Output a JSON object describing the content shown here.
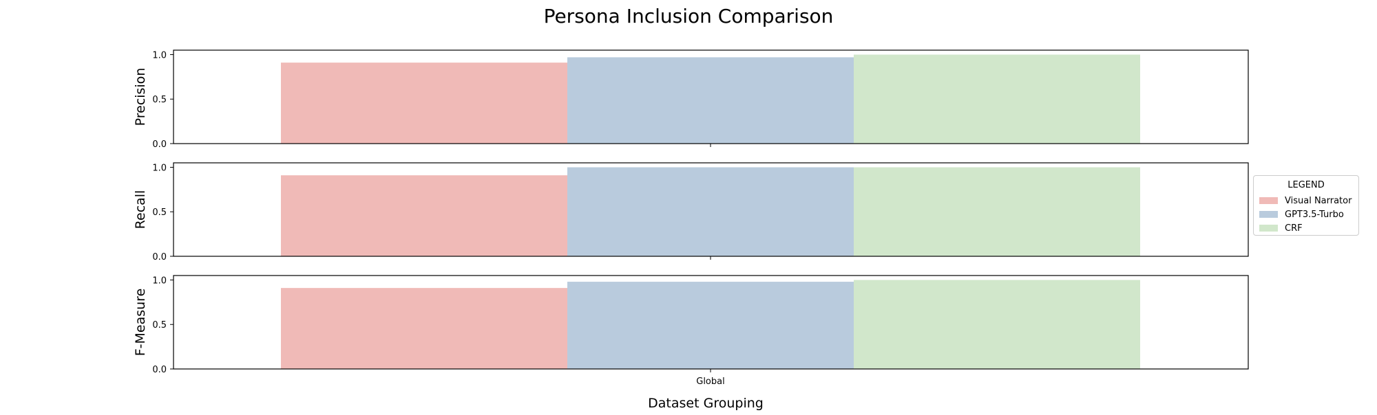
{
  "title": "Persona Inclusion Comparison",
  "xlabel": "Dataset Grouping",
  "legend": {
    "title": "LEGEND",
    "items": [
      {
        "label": "Visual Narrator",
        "color": "#f0bab7"
      },
      {
        "label": "GPT3.5-Turbo",
        "color": "#b9cbdd"
      },
      {
        "label": "CRF",
        "color": "#d1e7cb"
      }
    ]
  },
  "chart_data": [
    {
      "type": "bar",
      "ylabel": "Precision",
      "categories": [
        "Global"
      ],
      "ylim": [
        0,
        1.05
      ],
      "yticks": [
        "0.0",
        "0.5",
        "1.0"
      ],
      "series": [
        {
          "name": "Visual Narrator",
          "values": [
            0.91
          ]
        },
        {
          "name": "GPT3.5-Turbo",
          "values": [
            0.97
          ]
        },
        {
          "name": "CRF",
          "values": [
            1.0
          ]
        }
      ]
    },
    {
      "type": "bar",
      "ylabel": "Recall",
      "categories": [
        "Global"
      ],
      "ylim": [
        0,
        1.05
      ],
      "yticks": [
        "0.0",
        "0.5",
        "1.0"
      ],
      "series": [
        {
          "name": "Visual Narrator",
          "values": [
            0.91
          ]
        },
        {
          "name": "GPT3.5-Turbo",
          "values": [
            1.0
          ]
        },
        {
          "name": "CRF",
          "values": [
            1.0
          ]
        }
      ]
    },
    {
      "type": "bar",
      "ylabel": "F-Measure",
      "categories": [
        "Global"
      ],
      "ylim": [
        0,
        1.05
      ],
      "yticks": [
        "0.0",
        "0.5",
        "1.0"
      ],
      "series": [
        {
          "name": "Visual Narrator",
          "values": [
            0.91
          ]
        },
        {
          "name": "GPT3.5-Turbo",
          "values": [
            0.98
          ]
        },
        {
          "name": "CRF",
          "values": [
            1.0
          ]
        }
      ]
    }
  ]
}
